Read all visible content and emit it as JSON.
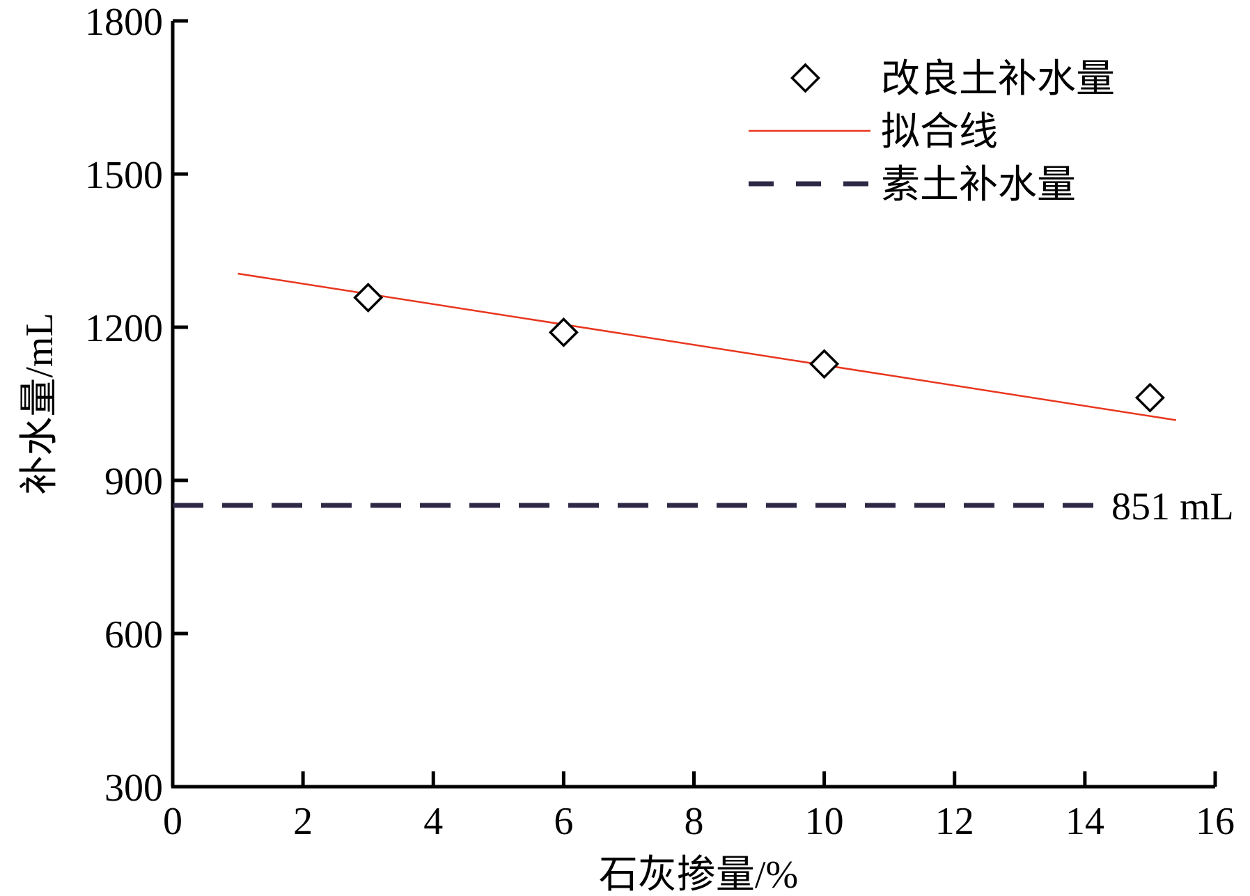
{
  "chart_data": {
    "type": "scatter",
    "title": "",
    "xlabel": "石灰掺量/%",
    "ylabel": "补水量/mL",
    "xlim": [
      0,
      16
    ],
    "ylim": [
      300,
      1800
    ],
    "xticks": [
      0,
      2,
      4,
      6,
      8,
      10,
      12,
      14,
      16
    ],
    "yticks": [
      300,
      600,
      900,
      1200,
      1500,
      1800
    ],
    "grid": false,
    "legend_position": "top-right",
    "series": [
      {
        "name": "改良土补水量",
        "kind": "scatter",
        "marker": "diamond",
        "color": "#000000",
        "x": [
          3,
          6,
          10,
          15
        ],
        "y": [
          1258,
          1190,
          1128,
          1062
        ]
      },
      {
        "name": "拟合线",
        "kind": "line",
        "color": "#e8361e",
        "x": [
          1,
          15.4
        ],
        "y": [
          1305,
          1018
        ]
      },
      {
        "name": "素土补水量",
        "kind": "dashed-line",
        "color": "#2e2845",
        "x": [
          0,
          14.3
        ],
        "y": [
          851,
          851
        ]
      }
    ],
    "annotations": [
      {
        "text": "851 mL",
        "x": 14.3,
        "y": 851
      }
    ]
  }
}
